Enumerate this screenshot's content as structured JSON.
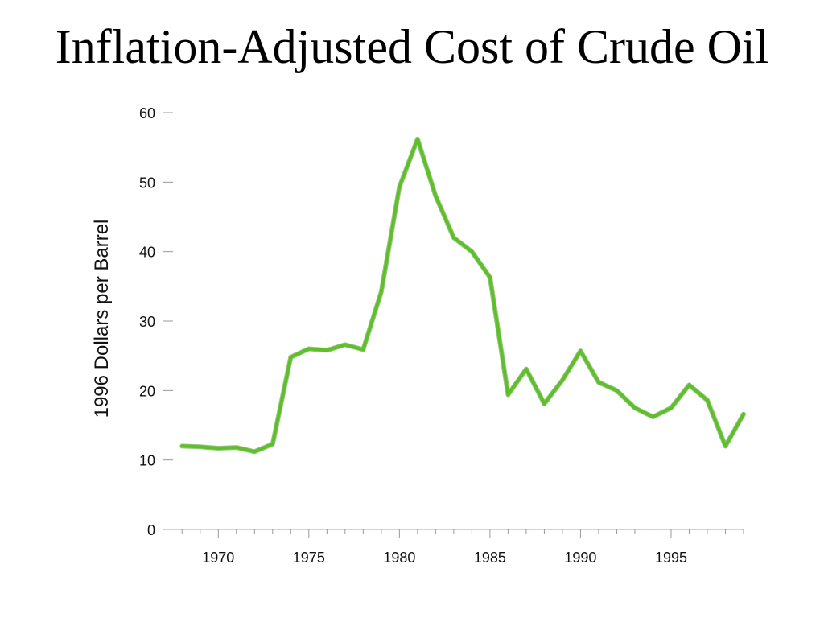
{
  "slide": {
    "title": "Inflation-Adjusted Cost of Crude Oil"
  },
  "chart_data": {
    "type": "line",
    "title": "Inflation-Adjusted Cost of Crude Oil",
    "xlabel": "",
    "ylabel": "1996 Dollars per Barrel",
    "xlim": [
      1967.5,
      1999
    ],
    "ylim": [
      0,
      60
    ],
    "x_ticks": [
      1970,
      1975,
      1980,
      1985,
      1990,
      1995
    ],
    "x_tick_labels": [
      "1970",
      "1975",
      "1980",
      "1985",
      "1990",
      "1995"
    ],
    "y_ticks": [
      0,
      10,
      20,
      30,
      40,
      50,
      60
    ],
    "y_tick_labels": [
      "0",
      "10",
      "20",
      "30",
      "40",
      "50",
      "60"
    ],
    "grid": false,
    "line_color": "#5fbf2a",
    "series": [
      {
        "name": "",
        "x": [
          1968,
          1969,
          1970,
          1971,
          1972,
          1973,
          1974,
          1975,
          1976,
          1977,
          1978,
          1979,
          1980,
          1981,
          1982,
          1983,
          1984,
          1985,
          1986,
          1987,
          1988,
          1989,
          1990,
          1991,
          1992,
          1993,
          1994,
          1995,
          1996,
          1997,
          1998,
          1999
        ],
        "values": [
          12.0,
          11.9,
          11.7,
          11.8,
          11.2,
          12.3,
          24.8,
          26.0,
          25.8,
          26.6,
          25.9,
          34.2,
          49.3,
          56.2,
          48.0,
          42.0,
          40.0,
          36.3,
          19.4,
          23.1,
          18.1,
          21.5,
          25.7,
          21.2,
          20.0,
          17.5,
          16.2,
          17.5,
          20.8,
          18.6,
          12.0,
          16.6
        ]
      }
    ]
  }
}
